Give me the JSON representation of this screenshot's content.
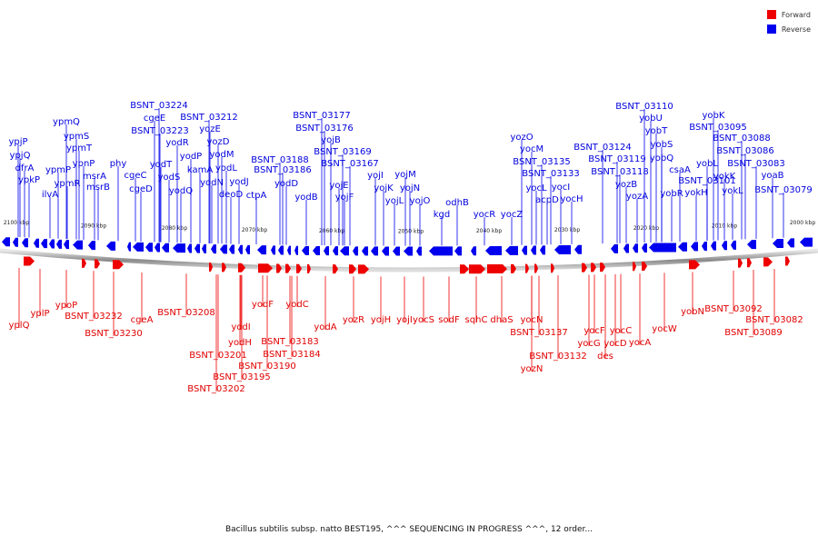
{
  "legend": {
    "forward": {
      "label": "Forward",
      "color": "#ee0000"
    },
    "reverse": {
      "label": "Reverse",
      "color": "#0000ee"
    }
  },
  "caption": "Bacillus subtilis subsp. natto BEST195, ^^^ SEQUENCING IN PROGRESS ^^^, 12 order...",
  "ticks": [
    "2100 kbp",
    "2090 kbp",
    "2080 kbp",
    "2070 kbp",
    "2060 kbp",
    "2050 kbp",
    "2040 kbp",
    "2030 kbp",
    "2020 kbp",
    "2010 kbp",
    "2000 kbp"
  ],
  "reverse_labels": [
    "ypjP",
    "ypjQ",
    "dfrA",
    "ypkP",
    "ilvA",
    "ypmQ",
    "ypmS",
    "ypmT",
    "ypmP",
    "ypmR",
    "ypnP",
    "msrA",
    "msrB",
    "phy",
    "cgeC",
    "cgeD",
    "BSNT_03224",
    "cgeE",
    "BSNT_03223",
    "yodT",
    "yodS",
    "yodR",
    "BSNT_03212",
    "yozE",
    "yodQ",
    "yodP",
    "kamA",
    "yozD",
    "yodM",
    "yodL",
    "yodN",
    "deoD",
    "yodJ",
    "ctpA",
    "BSNT_03188",
    "BSNT_03186",
    "yodD",
    "yodB",
    "BSNT_03177",
    "BSNT_03176",
    "yojB",
    "BSNT_03169",
    "BSNT_03167",
    "yojE",
    "yojF",
    "yojI",
    "yojK",
    "yojL",
    "yojM",
    "yojN",
    "yojO",
    "kgd",
    "odhB",
    "yocR",
    "yocZ",
    "yozO",
    "yocM",
    "BSNT_03135",
    "BSNT_03133",
    "yocL",
    "acpD",
    "yocI",
    "yocH",
    "BSNT_03124",
    "BSNT_03119",
    "BSNT_03118",
    "yozB",
    "yozA",
    "BSNT_03110",
    "yobU",
    "yobT",
    "yobS",
    "yobQ",
    "csaA",
    "yobR",
    "BSNT_03101",
    "yokH",
    "yobL",
    "yobK",
    "BSNT_03095",
    "BSNT_03088",
    "BSNT_03086",
    "yokK",
    "yokL",
    "BSNT_03083",
    "yoaB",
    "BSNT_03079"
  ],
  "forward_labels": [
    "yplQ",
    "yplP",
    "ypoP",
    "BSNT_03232",
    "BSNT_03230",
    "cgeA",
    "BSNT_03208",
    "BSNT_03201",
    "yodI",
    "yodH",
    "BSNT_03202",
    "BSNT_03195",
    "yodF",
    "BSNT_03190",
    "BSNT_03183",
    "yodC",
    "BSNT_03184",
    "yodA",
    "yozR",
    "yojH",
    "yojI",
    "yocS",
    "sodF",
    "sqhC",
    "dhaS",
    "yocN",
    "BSNT_03137",
    "yozN",
    "BSNT_03132",
    "yocF",
    "yocG",
    "des",
    "yocC",
    "yocD",
    "yocA",
    "yocW",
    "yobN",
    "BSNT_03092",
    "BSNT_03089",
    "BSNT_03082"
  ]
}
